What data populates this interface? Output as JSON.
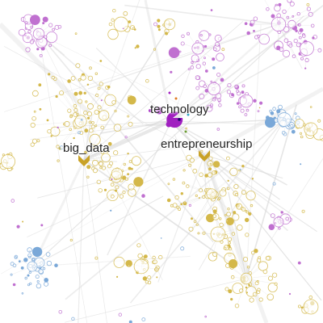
{
  "graph": {
    "colors": {
      "gold": "#c9a227",
      "gold_node": "#d4b84a",
      "purple": "#a020c0",
      "purple_node": "#c070d0",
      "blue_node": "#7aa8d8",
      "edge": "#d9d9d9",
      "label": "#222222"
    },
    "hubs": [
      {
        "id": "technology",
        "label": "technology",
        "color": "purple"
      },
      {
        "id": "big_data",
        "label": "big_data",
        "color": "gold"
      },
      {
        "id": "entrepreneurship",
        "label": "entrepreneurship",
        "color": "gold"
      }
    ]
  }
}
